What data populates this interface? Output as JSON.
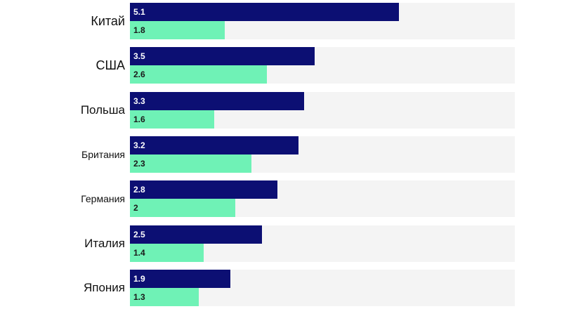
{
  "colors": {
    "series_a": "#0c0f73",
    "series_b": "#6ff2b6",
    "row_bg": "#f4f4f4"
  },
  "chart_data": {
    "type": "bar",
    "orientation": "horizontal",
    "categories": [
      "Китай",
      "США",
      "Польша",
      "Британия",
      "Германия",
      "Италия",
      "Япония"
    ],
    "series": [
      {
        "values": [
          5.1,
          3.5,
          3.3,
          3.2,
          2.8,
          2.5,
          1.9
        ],
        "labels": [
          "5.1",
          "3.5",
          "3.3",
          "3.2",
          "2.8",
          "2.5",
          "1.9"
        ],
        "color": "#0c0f73"
      },
      {
        "values": [
          1.8,
          2.6,
          1.6,
          2.3,
          2,
          1.4,
          1.3
        ],
        "labels": [
          "1.8",
          "2.6",
          "1.6",
          "2.3",
          "2",
          "1.4",
          "1.3"
        ],
        "color": "#6ff2b6"
      }
    ],
    "xlim": [
      0,
      7.3
    ],
    "grid": false,
    "title": "",
    "xlabel": "",
    "ylabel": ""
  }
}
